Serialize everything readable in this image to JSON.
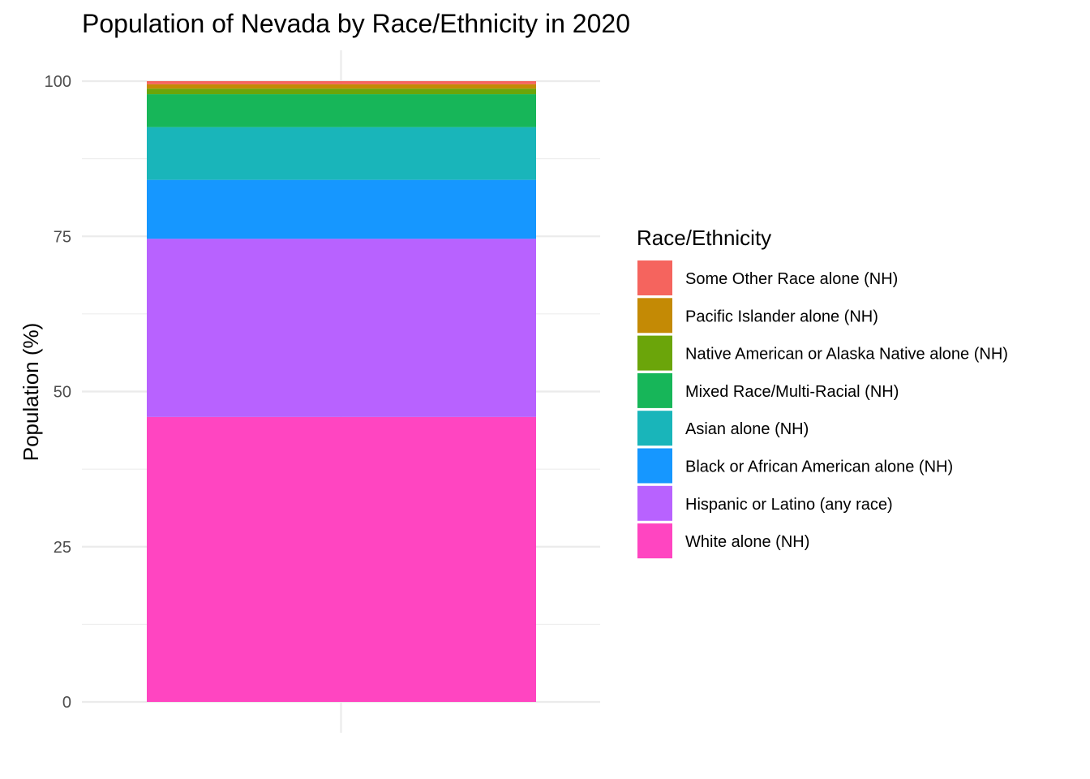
{
  "chart_data": {
    "type": "bar",
    "title": "Population of Nevada by Race/Ethnicity in 2020",
    "xlabel": "",
    "ylabel": "Population (%)",
    "ylim": [
      0,
      100
    ],
    "yticks": [
      "0",
      "25",
      "50",
      "75",
      "100"
    ],
    "grid": true,
    "stacked": true,
    "legend_position": "right",
    "legend_title": "Race/Ethnicity",
    "series": [
      {
        "name": "White alone (NH)",
        "value": 45.9,
        "color": "#FF45C1"
      },
      {
        "name": "Hispanic or Latino (any race)",
        "value": 28.7,
        "color": "#B862FF"
      },
      {
        "name": "Black or African American alone (NH)",
        "value": 9.5,
        "color": "#1697FF"
      },
      {
        "name": "Asian alone (NH)",
        "value": 8.5,
        "color": "#19B5BA"
      },
      {
        "name": "Mixed Race/Multi-Racial (NH)",
        "value": 5.3,
        "color": "#17B659"
      },
      {
        "name": "Native American or Alaska Native alone (NH)",
        "value": 0.9,
        "color": "#6BA50A"
      },
      {
        "name": "Pacific Islander alone (NH)",
        "value": 0.7,
        "color": "#C48A05"
      },
      {
        "name": "Some Other Race alone (NH)",
        "value": 0.5,
        "color": "#F5645E"
      }
    ]
  }
}
